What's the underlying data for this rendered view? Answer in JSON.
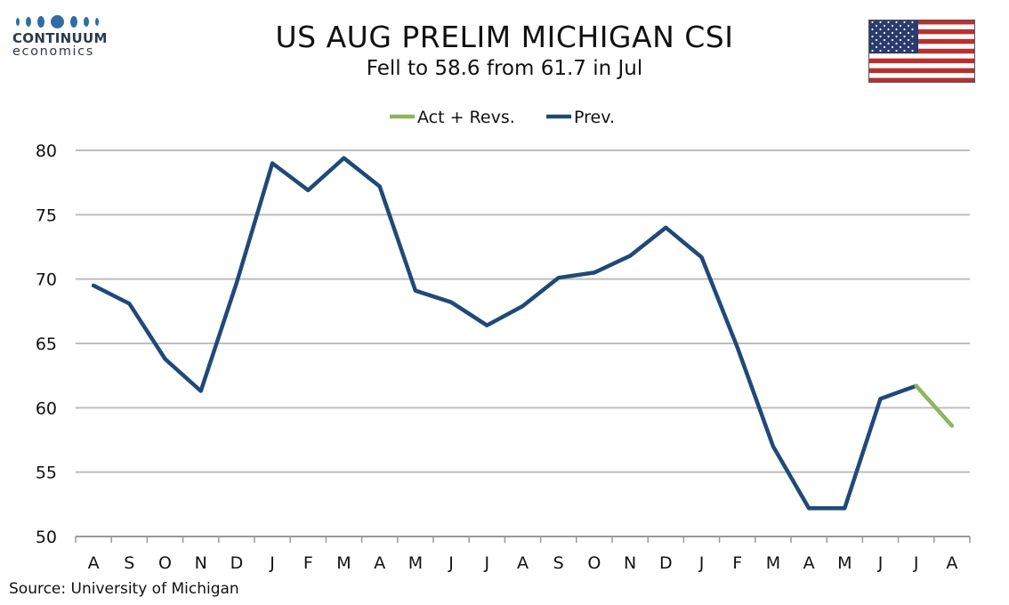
{
  "logo": {
    "name": "CONTINUUM",
    "sub": "economics"
  },
  "title": "US AUG PRELIM MICHIGAN CSI",
  "subtitle": "Fell to 58.6 from 61.7 in Jul",
  "source": "Source: University of Michigan",
  "colors": {
    "prev": "#1f4a78",
    "act": "#8db55a",
    "grid": "#bdbdbd",
    "logo": "#2f6ea5"
  },
  "chart_data": {
    "type": "line",
    "categories": [
      "A",
      "S",
      "O",
      "N",
      "D",
      "J",
      "F",
      "M",
      "A",
      "M",
      "J",
      "J",
      "A",
      "S",
      "O",
      "N",
      "D",
      "J",
      "F",
      "M",
      "A",
      "M",
      "J",
      "J",
      "A"
    ],
    "series": [
      {
        "name": "Act + Revs.",
        "color": "#8db55a",
        "values": [
          null,
          null,
          null,
          null,
          null,
          null,
          null,
          null,
          null,
          null,
          null,
          null,
          null,
          null,
          null,
          null,
          null,
          null,
          null,
          null,
          null,
          null,
          null,
          61.7,
          58.6
        ]
      },
      {
        "name": "Prev.",
        "color": "#1f4a78",
        "values": [
          69.5,
          68.1,
          63.8,
          61.3,
          69.7,
          79.0,
          76.9,
          79.4,
          77.2,
          69.1,
          68.2,
          66.4,
          67.9,
          70.1,
          70.5,
          71.8,
          74.0,
          71.7,
          64.7,
          57.0,
          52.2,
          52.2,
          60.7,
          61.7,
          null
        ]
      }
    ],
    "ylim": [
      50,
      80
    ],
    "yticks": [
      50,
      55,
      60,
      65,
      70,
      75,
      80
    ],
    "grid": true,
    "legend": "top-center",
    "xlabel": "",
    "ylabel": ""
  }
}
